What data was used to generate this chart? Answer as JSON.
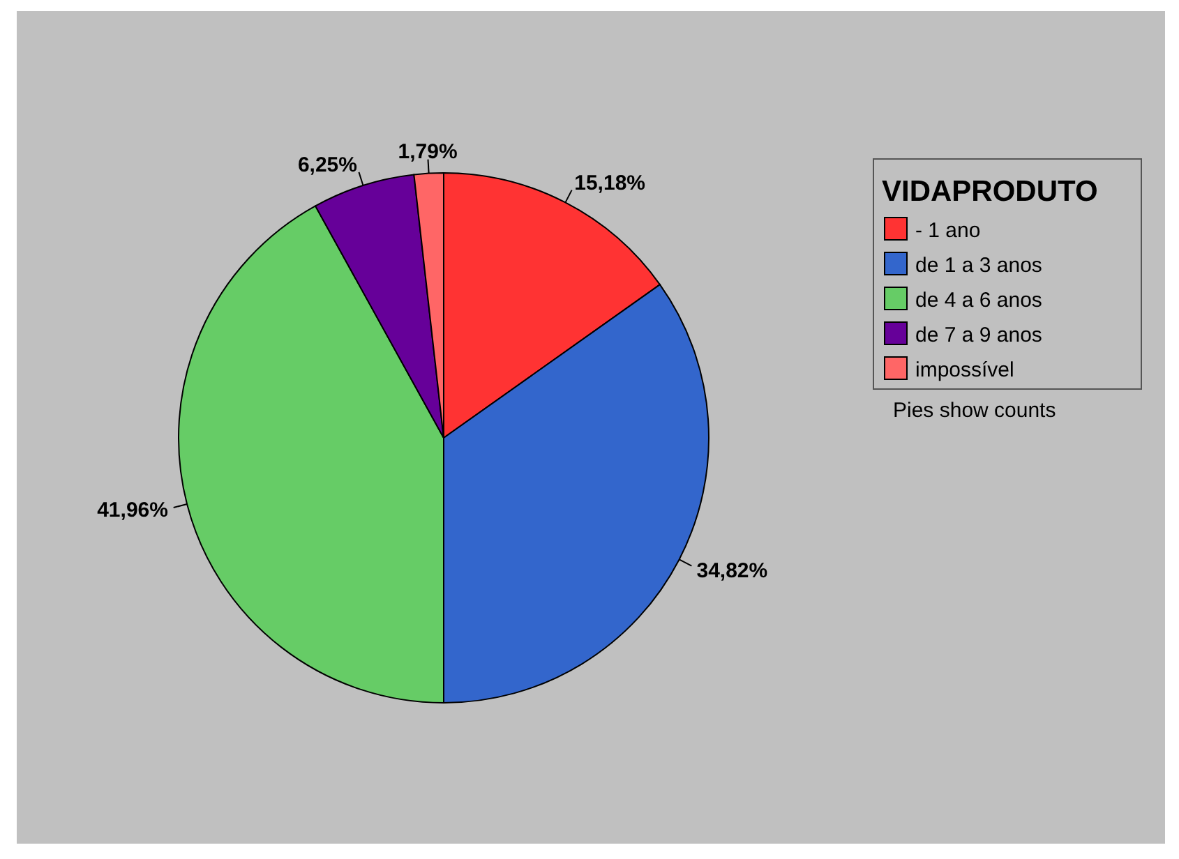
{
  "chart_data": {
    "type": "pie",
    "legend_title": "VIDAPRODUTO",
    "legend": "top right",
    "categories": [
      "- 1 ano",
      "de 1 a 3 anos",
      "de 4 a 6 anos",
      "de 7 a 9 anos",
      "impossível"
    ],
    "values": [
      15.18,
      34.82,
      41.96,
      6.25,
      1.79
    ],
    "colors": [
      "#ff3333",
      "#3366cc",
      "#66cc66",
      "#660099",
      "#ff6666"
    ],
    "value_labels": [
      "15,18%",
      "34,82%",
      "41,96%",
      "6,25%",
      "1,79%"
    ],
    "annotations": [
      "Pies show counts"
    ]
  }
}
